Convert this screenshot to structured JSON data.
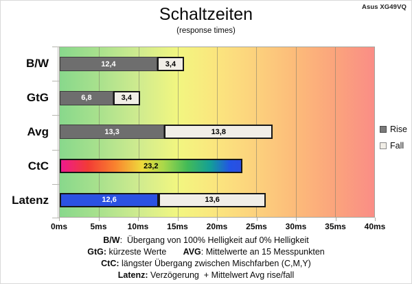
{
  "window": {
    "brand": "Asus XG49VQ"
  },
  "header": {
    "title": "Schaltzeiten",
    "subtitle": "(response times)"
  },
  "chart_data": {
    "type": "bar",
    "orientation": "horizontal",
    "stacked": true,
    "title": "Schaltzeiten",
    "subtitle": "(response times)",
    "unit": "ms",
    "xlim": [
      0,
      40
    ],
    "grid": true,
    "x_ticks": [
      {
        "value": 0,
        "label": "0ms"
      },
      {
        "value": 5,
        "label": "5ms"
      },
      {
        "value": 10,
        "label": "10ms"
      },
      {
        "value": 15,
        "label": "15ms"
      },
      {
        "value": 20,
        "label": "20ms"
      },
      {
        "value": 25,
        "label": "25ms"
      },
      {
        "value": 30,
        "label": "30ms"
      },
      {
        "value": 35,
        "label": "35ms"
      },
      {
        "value": 40,
        "label": "40ms"
      }
    ],
    "categories": [
      "B/W",
      "GtG",
      "Avg",
      "CtC",
      "Latenz"
    ],
    "rows": [
      {
        "category": "B/W",
        "segments": [
          {
            "series": "Rise",
            "value": 12.4,
            "label": "12,4",
            "color": "#6e6e6e",
            "text_color": "#ffffff",
            "border": "1px solid #3b3b3b"
          },
          {
            "series": "Fall",
            "value": 3.4,
            "label": "3,4",
            "color": "#f1eee7",
            "text_color": "#000000",
            "border": "2px solid #161616"
          }
        ]
      },
      {
        "category": "GtG",
        "segments": [
          {
            "series": "Rise",
            "value": 6.8,
            "label": "6,8",
            "color": "#6e6e6e",
            "text_color": "#ffffff",
            "border": "1px solid #3b3b3b"
          },
          {
            "series": "Fall",
            "value": 3.4,
            "label": "3,4",
            "color": "#f1eee7",
            "text_color": "#000000",
            "border": "2px solid #161616"
          }
        ]
      },
      {
        "category": "Avg",
        "segments": [
          {
            "series": "Rise",
            "value": 13.3,
            "label": "13,3",
            "color": "#6e6e6e",
            "text_color": "#ffffff",
            "border": "1px solid #3b3b3b"
          },
          {
            "series": "Fall",
            "value": 13.8,
            "label": "13,8",
            "color": "#f1eee7",
            "text_color": "#000000",
            "border": "2px solid #161616"
          }
        ]
      },
      {
        "category": "CtC",
        "segments": [
          {
            "series": "CtC",
            "value": 23.2,
            "label": "23,2",
            "color": "rainbow",
            "text_color": "#000000",
            "border": "2px solid #161616"
          }
        ]
      },
      {
        "category": "Latenz",
        "segments": [
          {
            "series": "Rise",
            "value": 12.6,
            "label": "12,6",
            "color": "#2b52e2",
            "text_color": "#ffffff",
            "border": "2px solid #161616"
          },
          {
            "series": "Fall",
            "value": 13.6,
            "label": "13,6",
            "color": "#f1eee7",
            "text_color": "#000000",
            "border": "2px solid #161616"
          }
        ]
      }
    ],
    "legend": {
      "position": "right",
      "entries": [
        {
          "name": "Rise",
          "color": "#7a7a7a",
          "swatch_border": "#4a4a4a"
        },
        {
          "name": "Fall",
          "color": "#f1eee7",
          "swatch_border": "#8a8a8a"
        }
      ]
    },
    "plot_background_stops": [
      "#88d88c",
      "#a9e18d",
      "#cfeb8f",
      "#f2f680",
      "#fbe57e",
      "#fcd17d",
      "#fcbb7a",
      "#fba47c",
      "#fa8d86"
    ],
    "rainbow_stops": [
      "#ef1a8d 0%",
      "#f23b35 15%",
      "#f9822e 30%",
      "#eedb3c 45%",
      "#a8d84a 57%",
      "#43bb57 70%",
      "#139f97 83%",
      "#2353e6 94%",
      "#2b4fe0 100%"
    ]
  },
  "footnotes": {
    "lines": [
      {
        "segments": [
          {
            "bold": true,
            "text": "B/W"
          },
          {
            "bold": false,
            "text": ":  Übergang von 100% Helligkeit auf 0% Helligkeit"
          }
        ]
      },
      {
        "segments": [
          {
            "bold": true,
            "text": "GtG:"
          },
          {
            "bold": false,
            "text": " kürzeste Werte       "
          },
          {
            "bold": true,
            "text": "AVG"
          },
          {
            "bold": false,
            "text": ": Mittelwerte an 15 Messpunkten"
          }
        ]
      },
      {
        "segments": [
          {
            "bold": true,
            "text": "CtC:"
          },
          {
            "bold": false,
            "text": " längster Übergang zwischen Mischfarben (C,M,Y)"
          }
        ]
      },
      {
        "segments": [
          {
            "bold": true,
            "text": "Latenz:"
          },
          {
            "bold": false,
            "text": " Verzögerung  + Mittelwert Avg rise/fall"
          }
        ]
      }
    ]
  }
}
